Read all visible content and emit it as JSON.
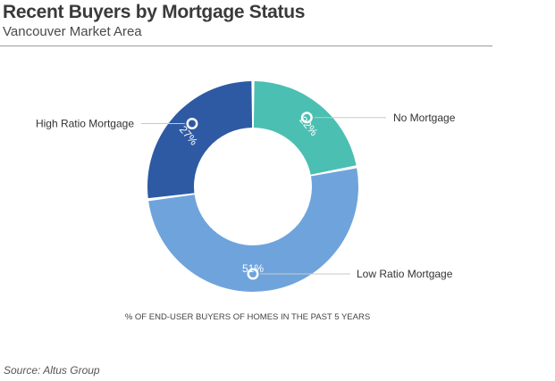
{
  "header": {
    "title": "Recent Buyers by Mortgage Status",
    "subtitle": "Vancouver Market Area"
  },
  "chart_data": {
    "type": "pie",
    "variant": "donut",
    "title": "Recent Buyers by Mortgage Status",
    "subtitle": "Vancouver Market Area",
    "caption": "% OF END-USER BUYERS OF HOMES IN THE PAST 5 YEARS",
    "unit": "%",
    "slices": [
      {
        "label": "No Mortgage",
        "value": 22,
        "display": "22%",
        "color": "#4bbfb2"
      },
      {
        "label": "Low Ratio Mortgage",
        "value": 51,
        "display": "51%",
        "color": "#6fa3dc"
      },
      {
        "label": "High Ratio Mortgage",
        "value": 27,
        "display": "27%",
        "color": "#2e5aa3"
      }
    ]
  },
  "footer": {
    "source": "Source: Altus Group"
  }
}
